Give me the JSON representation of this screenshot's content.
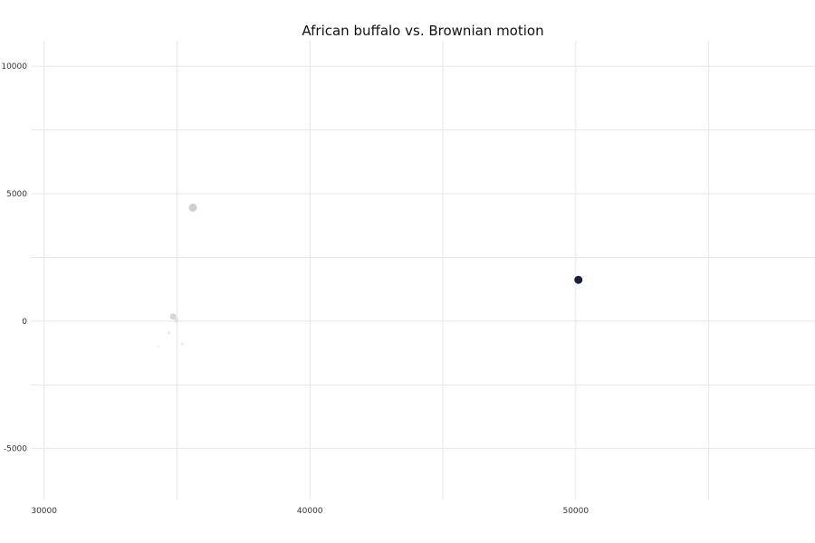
{
  "chart_data": {
    "type": "scatter",
    "title": "African buffalo vs. Brownian motion",
    "xlabel": "",
    "ylabel": "",
    "xlim": [
      29500,
      59000
    ],
    "ylim": [
      -7000,
      11000
    ],
    "grid": true,
    "x_ticks": [
      30000,
      40000,
      50000
    ],
    "y_ticks": [
      10000,
      5000,
      0,
      -5000
    ],
    "x_minor_grid": [
      35000,
      45000,
      55000
    ],
    "y_minor_grid": [
      7500,
      2500,
      -2500
    ],
    "points": [
      {
        "x": 35600,
        "y": 4450,
        "size": 4.5,
        "color": "#cfcfcf"
      },
      {
        "x": 34850,
        "y": 180,
        "size": 3.5,
        "color": "#d6d6d6"
      },
      {
        "x": 34980,
        "y": 30,
        "size": 2.5,
        "color": "#e2e2e2"
      },
      {
        "x": 34700,
        "y": -450,
        "size": 1.6,
        "color": "#ececec"
      },
      {
        "x": 35200,
        "y": -900,
        "size": 1.6,
        "color": "#ebebeb"
      },
      {
        "x": 34300,
        "y": -1000,
        "size": 1.2,
        "color": "#f1f1f1"
      },
      {
        "x": 50100,
        "y": 1620,
        "size": 4.5,
        "color": "#14243a"
      }
    ]
  }
}
